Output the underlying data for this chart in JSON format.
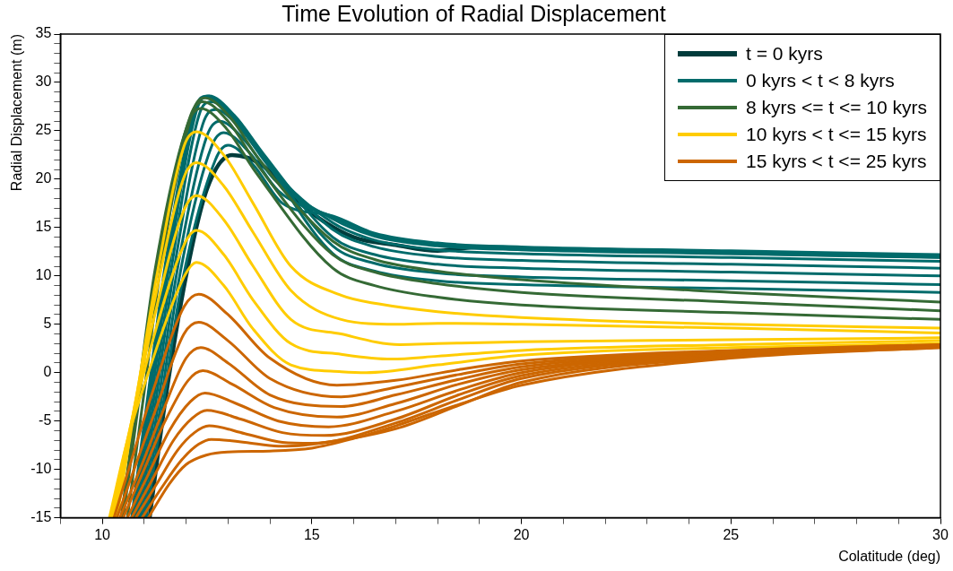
{
  "chart_data": {
    "type": "line",
    "title": "Time Evolution of Radial Displacement",
    "xlabel": "Colatitude (deg)",
    "ylabel": "Radial Displacement (m)",
    "xlim": [
      9,
      30
    ],
    "ylim": [
      -15,
      35
    ],
    "xticks": [
      {
        "value": 9,
        "label": null
      },
      10,
      {
        "value": 11,
        "label": null
      },
      {
        "value": 12,
        "label": null
      },
      {
        "value": 13,
        "label": null
      },
      {
        "value": 14,
        "label": null
      },
      15,
      {
        "value": 16,
        "label": null
      },
      {
        "value": 17,
        "label": null
      },
      {
        "value": 18,
        "label": null
      },
      {
        "value": 19,
        "label": null
      },
      20,
      {
        "value": 21,
        "label": null
      },
      {
        "value": 22,
        "label": null
      },
      {
        "value": 23,
        "label": null
      },
      {
        "value": 24,
        "label": null
      },
      25,
      {
        "value": 26,
        "label": null
      },
      {
        "value": 27,
        "label": null
      },
      {
        "value": 28,
        "label": null
      },
      {
        "value": 29,
        "label": null
      },
      30
    ],
    "yticks": [
      -15,
      {
        "value": -14,
        "label": null
      },
      {
        "value": -13,
        "label": null
      },
      {
        "value": -12,
        "label": null
      },
      {
        "value": -11,
        "label": null
      },
      -10,
      {
        "value": -9,
        "label": null
      },
      {
        "value": -8,
        "label": null
      },
      {
        "value": -7,
        "label": null
      },
      {
        "value": -6,
        "label": null
      },
      -5,
      {
        "value": -4,
        "label": null
      },
      {
        "value": -3,
        "label": null
      },
      {
        "value": -2,
        "label": null
      },
      {
        "value": -1,
        "label": null
      },
      0,
      {
        "value": 1,
        "label": null
      },
      {
        "value": 2,
        "label": null
      },
      {
        "value": 3,
        "label": null
      },
      {
        "value": 4,
        "label": null
      },
      5,
      {
        "value": 6,
        "label": null
      },
      {
        "value": 7,
        "label": null
      },
      {
        "value": 8,
        "label": null
      },
      {
        "value": 9,
        "label": null
      },
      10,
      {
        "value": 11,
        "label": null
      },
      {
        "value": 12,
        "label": null
      },
      {
        "value": 13,
        "label": null
      },
      {
        "value": 14,
        "label": null
      },
      15,
      {
        "value": 16,
        "label": null
      },
      {
        "value": 17,
        "label": null
      },
      {
        "value": 18,
        "label": null
      },
      {
        "value": 19,
        "label": null
      },
      20,
      {
        "value": 21,
        "label": null
      },
      {
        "value": 22,
        "label": null
      },
      {
        "value": 23,
        "label": null
      },
      {
        "value": 24,
        "label": null
      },
      25,
      {
        "value": 26,
        "label": null
      },
      {
        "value": 27,
        "label": null
      },
      {
        "value": 28,
        "label": null
      },
      {
        "value": 29,
        "label": null
      },
      30,
      {
        "value": 31,
        "label": null
      },
      {
        "value": 32,
        "label": null
      },
      {
        "value": 33,
        "label": null
      },
      {
        "value": 34,
        "label": null
      },
      35
    ],
    "grid": false,
    "legend": "top right",
    "marker": "none",
    "line_style": "solid",
    "series": [
      {
        "name": "t = 0 kyrs",
        "color": "#013c3c",
        "x": [
          11.13,
          11.5,
          12,
          12.5,
          13.1,
          13.8,
          14.5,
          15,
          16,
          17,
          18,
          19,
          20,
          22,
          25,
          30
        ],
        "values": [
          -15,
          -3,
          10,
          19,
          22.5,
          21.5,
          18.5,
          16.5,
          14,
          13.2,
          12.6,
          13,
          12.8,
          12.7,
          12.4,
          12
        ]
      },
      {
        "name": "0 kyrs < t < 8 kyrs",
        "color": "#006b6b",
        "x": [
          11.05,
          11.45,
          11.85,
          12.7,
          13,
          13.6,
          14.3,
          15.5,
          16.5,
          18,
          20,
          25,
          30
        ],
        "values": [
          -15,
          -3.4,
          8.1,
          22,
          23.5,
          21.5,
          17.5,
          16.2,
          14.4,
          13.4,
          13,
          12.6,
          12.2
        ]
      },
      {
        "color": "#006b6b",
        "x": [
          11,
          11.4,
          11.8,
          12.6,
          12.9,
          13.5,
          14.2,
          15.5,
          16.5,
          18,
          20,
          25,
          30
        ],
        "values": [
          -15,
          -3.1,
          8.9,
          23.3,
          24.8,
          22.8,
          18.8,
          16.1,
          14.3,
          13.3,
          12.9,
          12.5,
          12.1
        ]
      },
      {
        "color": "#006b6b",
        "x": [
          10.95,
          11.35,
          11.75,
          12.5,
          12.8,
          13.4,
          14.1,
          15.5,
          16.5,
          18,
          20,
          25,
          30
        ],
        "values": [
          -15,
          -2.7,
          9.6,
          24.5,
          26,
          24,
          20,
          15.9,
          14.1,
          13.1,
          12.7,
          12.3,
          11.9
        ]
      },
      {
        "color": "#006b6b",
        "x": [
          10.9,
          11.3,
          11.7,
          12.4,
          12.7,
          13.3,
          14,
          15.5,
          16.5,
          18,
          20,
          25,
          30
        ],
        "values": [
          -15,
          -2.3,
          10.3,
          25.7,
          27.2,
          25.2,
          21.2,
          15.5,
          13.7,
          12.7,
          12.3,
          11.9,
          11.5
        ]
      },
      {
        "color": "#006b6b",
        "x": [
          10.85,
          11.25,
          11.65,
          12.3,
          12.6,
          13.2,
          13.9,
          15.5,
          16.5,
          18,
          20,
          25,
          30
        ],
        "values": [
          -15,
          -2.1,
          10.8,
          26.5,
          28,
          26,
          22,
          14.8,
          13,
          12,
          11.6,
          11.2,
          10.8
        ]
      },
      {
        "color": "#006b6b",
        "x": [
          10.8,
          11.2,
          11.6,
          12.25,
          12.55,
          13.15,
          13.85,
          15.5,
          16.5,
          18,
          20,
          25,
          30
        ],
        "values": [
          -15,
          -1.9,
          11.2,
          27.1,
          28.6,
          26.6,
          22.6,
          14,
          12.2,
          11.2,
          10.8,
          10.4,
          10
        ]
      },
      {
        "color": "#006b6b",
        "x": [
          10.75,
          11.15,
          11.55,
          12.2,
          12.5,
          13.1,
          13.8,
          15.5,
          16.5,
          18,
          20,
          25,
          30
        ],
        "values": [
          -15,
          -1.9,
          11.2,
          27.1,
          28.6,
          26.6,
          22.6,
          13.1,
          11.3,
          10.3,
          9.9,
          9.5,
          9.1
        ]
      },
      {
        "color": "#006b6b",
        "x": [
          10.7,
          11.1,
          11.5,
          12.2,
          12.5,
          13.1,
          13.8,
          15.5,
          16.5,
          18,
          20,
          25,
          30
        ],
        "values": [
          -15,
          -2,
          11.1,
          27,
          28.5,
          26.5,
          22.5,
          12.3,
          10.5,
          9.5,
          9.1,
          8.7,
          8.3
        ]
      },
      {
        "name": "8 kyrs <= t <= 10 kyrs",
        "color": "#356a35",
        "x": [
          10.6,
          11,
          11.4,
          12.15,
          12.45,
          13.05,
          13.75,
          15.5,
          16.5,
          18,
          20,
          25,
          30
        ],
        "values": [
          -15,
          -2,
          11,
          26.9,
          28.4,
          26.4,
          22,
          13.6,
          11.7,
          10.5,
          9.6,
          8.3,
          7.3
        ]
      },
      {
        "color": "#356a35",
        "x": [
          10.5,
          10.9,
          11.3,
          12.1,
          12.4,
          13,
          13.7,
          15.5,
          16.5,
          18,
          20,
          25,
          30
        ],
        "values": [
          -15,
          -2.1,
          10.8,
          26.5,
          28,
          26,
          21.5,
          12.2,
          10.4,
          9.2,
          8.3,
          7.3,
          6.4
        ]
      },
      {
        "color": "#356a35",
        "x": [
          10.45,
          10.85,
          11.25,
          12.05,
          12.35,
          12.95,
          13.65,
          15.5,
          16.5,
          18,
          20,
          25,
          30
        ],
        "values": [
          -15,
          -2.3,
          10.4,
          25.8,
          27.3,
          25.3,
          20.8,
          10.8,
          9,
          7.8,
          7,
          6.2,
          5.5
        ]
      },
      {
        "name": "10 kyrs < t <= 15 kyrs",
        "color": "#ffcc00",
        "x": [
          10.35,
          10.8,
          11.3,
          11.95,
          12.25,
          12.9,
          13.6,
          14.5,
          15.7,
          16.6,
          18,
          20,
          25,
          30
        ],
        "values": [
          -15,
          -3,
          10,
          23.4,
          24.9,
          22.5,
          17.5,
          11,
          8,
          7.1,
          6.3,
          5.7,
          5,
          4.6
        ]
      },
      {
        "color": "#ffcc00",
        "x": [
          10.3,
          10.75,
          11.25,
          11.95,
          12.25,
          12.9,
          13.6,
          14.5,
          15.7,
          17,
          18,
          20,
          25,
          30
        ],
        "values": [
          -15,
          -4,
          7.5,
          20.2,
          21.7,
          19.3,
          14.5,
          8.5,
          5.5,
          5,
          5.1,
          5,
          4.6,
          4.1
        ]
      },
      {
        "color": "#ffcc00",
        "x": [
          10.25,
          10.7,
          11.2,
          11.95,
          12.25,
          12.9,
          13.6,
          14.5,
          15.7,
          17.1,
          18,
          20,
          25,
          30
        ],
        "values": [
          -15,
          -5,
          5,
          16.8,
          18.3,
          15.8,
          11,
          5.5,
          4,
          2.9,
          3,
          3.2,
          3.4,
          3.6
        ]
      },
      {
        "color": "#ffcc00",
        "x": [
          10.2,
          10.65,
          11.15,
          11.95,
          12.25,
          12.9,
          13.6,
          14.5,
          15.7,
          16.9,
          18,
          20,
          25,
          30
        ],
        "values": [
          -15,
          -6,
          2.5,
          13.2,
          14.7,
          12.2,
          7.5,
          3,
          1.9,
          1.4,
          1.7,
          2.3,
          2.9,
          3.3
        ]
      },
      {
        "color": "#ffcc00",
        "x": [
          10.17,
          10.6,
          11.1,
          11.95,
          12.25,
          12.9,
          13.6,
          14.5,
          15.7,
          16.3,
          18,
          20,
          25,
          30
        ],
        "values": [
          -15,
          -7,
          0,
          9.9,
          11.4,
          9,
          4.5,
          0.8,
          0.1,
          0,
          0.8,
          1.8,
          2.6,
          3
        ]
      },
      {
        "name": "15 kyrs < t <= 25 kyrs",
        "color": "#cc6600",
        "x": [
          10.28,
          10.7,
          11.2,
          11.95,
          12.3,
          13,
          14,
          15.6,
          17,
          18.5,
          20,
          25,
          30
        ],
        "values": [
          -15,
          -9,
          -2,
          6.8,
          8.1,
          6,
          1.5,
          -1.3,
          -0.8,
          0.3,
          1.2,
          2.3,
          2.9
        ]
      },
      {
        "color": "#cc6600",
        "x": [
          10.35,
          10.8,
          11.3,
          11.95,
          12.3,
          13,
          14,
          15.7,
          17,
          18.5,
          20,
          25,
          30
        ],
        "values": [
          -15,
          -9.5,
          -3.5,
          4,
          5.2,
          3.3,
          -0.6,
          -2.5,
          -1.5,
          -0.2,
          0.9,
          2.2,
          2.9
        ]
      },
      {
        "color": "#cc6600",
        "x": [
          10.42,
          10.9,
          11.4,
          12,
          12.35,
          13,
          14,
          15.7,
          17,
          18.5,
          20,
          25,
          30
        ],
        "values": [
          -15,
          -10,
          -4.5,
          1.5,
          2.6,
          1,
          -2.3,
          -3.5,
          -2.3,
          -0.7,
          0.6,
          2.1,
          2.8
        ]
      },
      {
        "color": "#cc6600",
        "x": [
          10.5,
          11,
          11.5,
          12.05,
          12.4,
          13.1,
          14.1,
          15.6,
          17,
          18.5,
          20,
          25,
          30
        ],
        "values": [
          -15,
          -10,
          -5,
          -0.8,
          0.2,
          -1.2,
          -3.6,
          -4.6,
          -3.2,
          -1.2,
          0.3,
          2,
          2.8
        ]
      },
      {
        "color": "#cc6600",
        "x": [
          10.6,
          11.1,
          11.6,
          12.1,
          12.45,
          13.2,
          14.2,
          15.4,
          17,
          18.5,
          20,
          25,
          30
        ],
        "values": [
          -15,
          -10.5,
          -6,
          -3,
          -2.1,
          -3.2,
          -5,
          -5.6,
          -4,
          -1.8,
          0,
          1.9,
          2.7
        ]
      },
      {
        "color": "#cc6600",
        "x": [
          10.7,
          11.2,
          11.7,
          12.15,
          12.5,
          13.3,
          14.3,
          15.3,
          17,
          18.5,
          20,
          25,
          30
        ],
        "values": [
          -15,
          -11,
          -7,
          -4.7,
          -3.9,
          -4.8,
          -6.2,
          -6.5,
          -4.8,
          -2.3,
          -0.3,
          1.8,
          2.7
        ]
      },
      {
        "color": "#cc6600",
        "x": [
          10.8,
          11.3,
          11.8,
          12.2,
          12.55,
          13.4,
          14.3,
          15,
          17,
          18.5,
          20,
          25,
          30
        ],
        "values": [
          -15,
          -11.5,
          -8,
          -6.2,
          -5.5,
          -6.3,
          -7.2,
          -7.3,
          -5.2,
          -2.8,
          -0.6,
          1.7,
          2.7
        ]
      },
      {
        "color": "#cc6600",
        "x": [
          10.95,
          11.4,
          11.9,
          12.3,
          12.6,
          13.4,
          14.2,
          14.8,
          17,
          18.5,
          20,
          25,
          30
        ],
        "values": [
          -15,
          -12,
          -9,
          -7.4,
          -6.9,
          -7.2,
          -7.6,
          -7.5,
          -5.8,
          -3.4,
          -1,
          1.6,
          2.6
        ]
      },
      {
        "color": "#cc6600",
        "x": [
          11.1,
          11.6,
          12,
          12.5,
          13,
          14,
          15,
          16,
          17,
          18.5,
          20,
          25,
          30
        ],
        "values": [
          -15,
          -11.5,
          -9.5,
          -8.5,
          -8.2,
          -8.1,
          -7.8,
          -6.8,
          -5.5,
          -3.3,
          -1.3,
          1.5,
          2.6
        ]
      }
    ]
  }
}
